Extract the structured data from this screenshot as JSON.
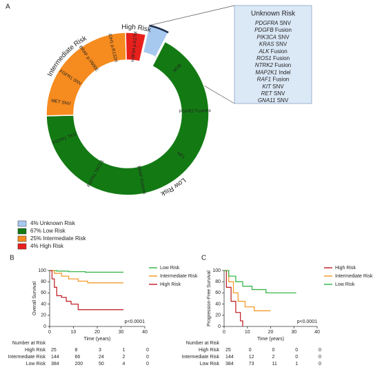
{
  "chart_data": [
    {
      "type": "pie",
      "panel": "A",
      "categories": [
        "Unknown Risk",
        "Low Risk",
        "Intermediate Risk",
        "High Risk"
      ],
      "values": [
        4,
        67,
        25,
        4
      ],
      "value_labels": [
        "4%",
        "67%",
        "25%",
        "4%"
      ],
      "colors": [
        "#a8c9ef",
        "#137a13",
        "#f68b1f",
        "#e8201c"
      ],
      "explode": [
        true,
        false,
        false,
        false
      ],
      "segment_labels": [
        [],
        [
          "MYB",
          "FGFR2 Fusions",
          "NF1",
          "BRAF Fusions",
          "FGFR1 TACC1",
          "FGFR1 TKD"
        ],
        [
          "MET SNV",
          "FGFR1 SNV",
          "BRAF p.V600E",
          "IDH1 p.R132H"
        ],
        [
          "H3F3A p.K27M"
        ]
      ],
      "unknown_risk_alterations": [
        {
          "gene": "PDGFRA",
          "alteration": "SNV"
        },
        {
          "gene": "PDGFB",
          "alteration": "Fusion"
        },
        {
          "gene": "PIK3CA",
          "alteration": "SNV"
        },
        {
          "gene": "KRAS",
          "alteration": "SNV"
        },
        {
          "gene": "ALK",
          "alteration": "Fusion"
        },
        {
          "gene": "ROS1",
          "alteration": "Fusion"
        },
        {
          "gene": "NTRK2",
          "alteration": "Fusion"
        },
        {
          "gene": "MAP2K1",
          "alteration": "Indel"
        },
        {
          "gene": "RAF1",
          "alteration": "Fusion"
        },
        {
          "gene": "KIT",
          "alteration": "SNV"
        },
        {
          "gene": "RET",
          "alteration": "SNV"
        },
        {
          "gene": "GNA11",
          "alteration": "SNV"
        }
      ]
    },
    {
      "type": "line",
      "panel": "B",
      "xlabel": "Time (years)",
      "ylabel": "Overall Survival",
      "xlim": [
        0,
        40
      ],
      "ylim": [
        0,
        100
      ],
      "xticks": [
        0,
        10,
        20,
        30,
        40
      ],
      "yticks": [
        0,
        20,
        40,
        60,
        80,
        100
      ],
      "annotation": "p<0.0001",
      "series": [
        {
          "name": "Low Risk",
          "color": "#39b54a",
          "x": [
            0,
            3,
            3,
            8,
            8,
            15,
            15,
            31
          ],
          "values": [
            100,
            100,
            99,
            99,
            98,
            98,
            97,
            97
          ]
        },
        {
          "name": "Intermediate Risk",
          "color": "#f39c2b",
          "x": [
            0,
            2,
            2,
            5,
            5,
            8,
            8,
            12,
            12,
            16,
            16,
            31
          ],
          "values": [
            100,
            100,
            95,
            95,
            90,
            90,
            85,
            85,
            81,
            81,
            78,
            78
          ]
        },
        {
          "name": "High Risk",
          "color": "#c1272d",
          "x": [
            0,
            1,
            1,
            2,
            2,
            3,
            3,
            5,
            5,
            7,
            7,
            9,
            9,
            12,
            12,
            31
          ],
          "values": [
            100,
            100,
            85,
            85,
            70,
            70,
            55,
            55,
            52,
            52,
            45,
            45,
            40,
            40,
            30,
            30
          ]
        }
      ],
      "risk_table": {
        "title": "Number at Risk",
        "rows": [
          {
            "name": "High Risk",
            "counts": [
              25,
              8,
              3,
              1,
              0
            ]
          },
          {
            "name": "Intermediate Risk",
            "counts": [
              144,
              66,
              24,
              2,
              0
            ]
          },
          {
            "name": "Low Risk",
            "counts": [
              384,
              200,
              50,
              4,
              0
            ]
          }
        ]
      }
    },
    {
      "type": "line",
      "panel": "C",
      "xlabel": "Time (years)",
      "ylabel": "Progression-Free Survival",
      "xlim": [
        0,
        40
      ],
      "ylim": [
        0,
        100
      ],
      "xticks": [
        0,
        10,
        20,
        30,
        40
      ],
      "yticks": [
        0,
        20,
        40,
        60,
        80,
        100
      ],
      "annotation": "p<0.0001",
      "series": [
        {
          "name": "High Risk",
          "color": "#c1272d",
          "x": [
            0,
            1,
            1,
            3,
            3,
            5,
            5,
            7,
            7,
            8,
            8
          ],
          "values": [
            100,
            100,
            70,
            70,
            45,
            45,
            25,
            25,
            10,
            10,
            0
          ]
        },
        {
          "name": "Intermediate Risk",
          "color": "#f39c2b",
          "x": [
            0,
            2,
            2,
            4,
            4,
            6,
            6,
            9,
            9,
            13,
            13,
            20
          ],
          "values": [
            100,
            100,
            80,
            80,
            60,
            60,
            45,
            45,
            35,
            35,
            28,
            28
          ]
        },
        {
          "name": "Low Risk",
          "color": "#39b54a",
          "x": [
            0,
            2,
            2,
            5,
            5,
            8,
            8,
            12,
            12,
            18,
            18,
            31
          ],
          "values": [
            100,
            100,
            90,
            90,
            80,
            80,
            72,
            72,
            66,
            66,
            60,
            60
          ]
        }
      ],
      "risk_table": {
        "title": "Number at Risk",
        "rows": [
          {
            "name": "High Risk",
            "counts": [
              25,
              0,
              0,
              0,
              0
            ]
          },
          {
            "name": "Intermediate Risk",
            "counts": [
              144,
              12,
              2,
              0,
              0
            ]
          },
          {
            "name": "Low Risk",
            "counts": [
              384,
              73,
              11,
              1,
              0
            ]
          }
        ]
      }
    }
  ]
}
